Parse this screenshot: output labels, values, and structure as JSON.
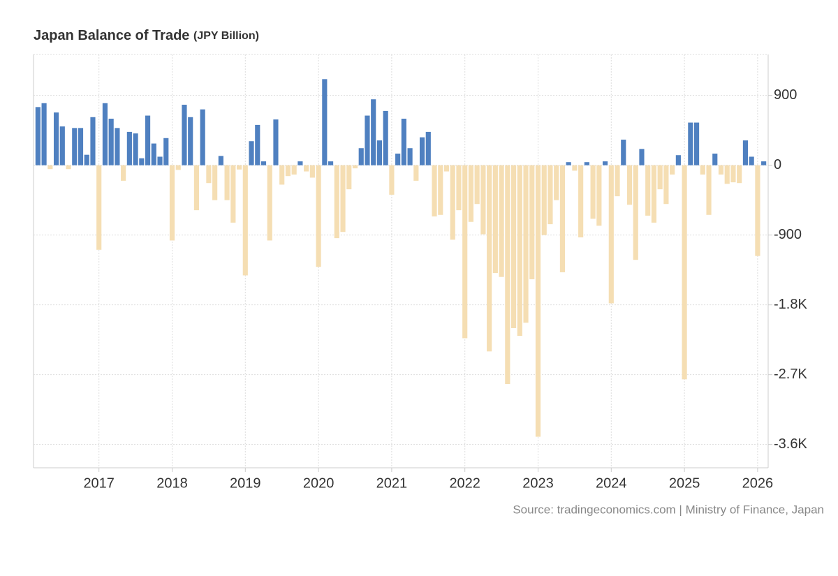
{
  "chart_data": {
    "type": "bar",
    "title": "Japan Balance of Trade",
    "unit": "(JPY Billion)",
    "source": "Source: tradingeconomics.com | Ministry of Finance, Japan",
    "categories": [
      null,
      null,
      null,
      null,
      null,
      null,
      null,
      null,
      null,
      null,
      "2017",
      null,
      null,
      null,
      null,
      null,
      null,
      null,
      null,
      null,
      null,
      null,
      "2018",
      null,
      null,
      null,
      null,
      null,
      null,
      null,
      null,
      null,
      null,
      null,
      "2019",
      null,
      null,
      null,
      null,
      null,
      null,
      null,
      null,
      null,
      null,
      null,
      "2020",
      null,
      null,
      null,
      null,
      null,
      null,
      null,
      null,
      null,
      null,
      null,
      "2021",
      null,
      null,
      null,
      null,
      null,
      null,
      null,
      null,
      null,
      null,
      null,
      "2022",
      null,
      null,
      null,
      null,
      null,
      null,
      null,
      null,
      null,
      null,
      null,
      "2023",
      null,
      null,
      null,
      null,
      null,
      null,
      null,
      null,
      null,
      null,
      null,
      "2024",
      null,
      null,
      null,
      null,
      null,
      null,
      null,
      null,
      null,
      null,
      null,
      "2025",
      null,
      null,
      null,
      null,
      null,
      null,
      null,
      null,
      null,
      null,
      null,
      "2026",
      null
    ],
    "values": [
      750,
      800,
      -50,
      680,
      500,
      -50,
      480,
      480,
      135,
      620,
      -1090,
      800,
      600,
      480,
      -200,
      430,
      410,
      90,
      640,
      280,
      110,
      350,
      -970,
      -60,
      780,
      620,
      -580,
      720,
      -230,
      -450,
      120,
      -450,
      -740,
      -55,
      -1420,
      310,
      520,
      50,
      -970,
      590,
      -250,
      -140,
      -120,
      50,
      -80,
      -160,
      -1310,
      1110,
      50,
      -940,
      -860,
      -310,
      -40,
      220,
      640,
      850,
      320,
      700,
      -380,
      150,
      600,
      220,
      -200,
      360,
      430,
      -660,
      -640,
      -80,
      -960,
      -580,
      -2230,
      -730,
      -500,
      -890,
      -2400,
      -1390,
      -1440,
      -2820,
      -2100,
      -2200,
      -2030,
      -1470,
      -3500,
      -900,
      -760,
      -450,
      -1380,
      40,
      -70,
      -930,
      40,
      -690,
      -780,
      50,
      -1780,
      -400,
      330,
      -510,
      -1220,
      210,
      -650,
      -740,
      -310,
      -500,
      -120,
      130,
      -2760,
      550,
      550,
      -120,
      -640,
      150,
      -120,
      -240,
      -220,
      -230,
      320,
      110,
      -1170,
      50
    ],
    "positive_color": "#4f80c0",
    "negative_color": "#f5deb3",
    "ylim": [
      -3900,
      1410
    ],
    "yticks": [
      {
        "value": -3600,
        "label": "-3.6K"
      },
      {
        "value": -2700,
        "label": "-2.7K"
      },
      {
        "value": -1800,
        "label": "-1.8K"
      },
      -900,
      0,
      900
    ],
    "grid": true
  }
}
